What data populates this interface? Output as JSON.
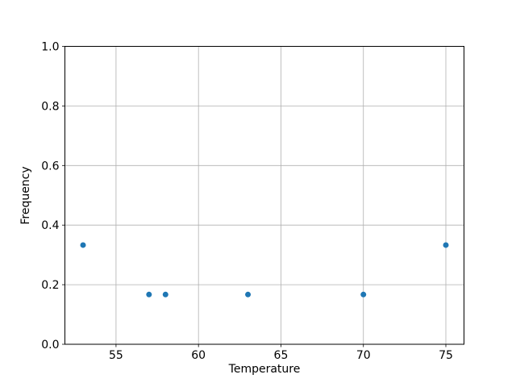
{
  "chart_data": {
    "type": "scatter",
    "title": "",
    "xlabel": "Temperature",
    "ylabel": "Frequency",
    "x": [
      53,
      57,
      58,
      63,
      70,
      75
    ],
    "y": [
      0.333,
      0.167,
      0.167,
      0.167,
      0.167,
      0.333
    ],
    "xlim": [
      51.9,
      76.1
    ],
    "ylim": [
      0.0,
      1.0
    ],
    "xticks": [
      "55",
      "60",
      "65",
      "70",
      "75"
    ],
    "yticks": [
      "0.0",
      "0.2",
      "0.4",
      "0.6",
      "0.8",
      "1.0"
    ],
    "grid": true,
    "legend": null,
    "marker_color": "#1f77b4",
    "grid_color": "#b0b0b0",
    "spine_color": "#000000",
    "background_color": "#ffffff"
  }
}
